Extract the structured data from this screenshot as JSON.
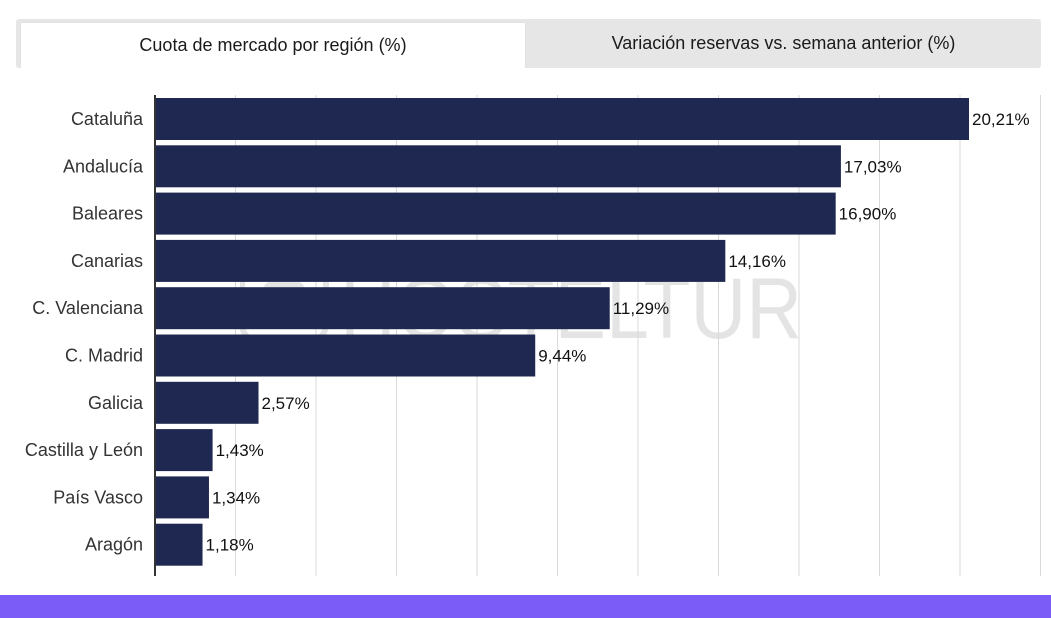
{
  "tabs": [
    {
      "label": "Cuota de mercado por región (%)",
      "active": true
    },
    {
      "label": "Variación reservas vs. semana anterior (%)",
      "active": false
    }
  ],
  "watermark": {
    "text": "HOSTELTUR"
  },
  "colors": {
    "bar": "#1f2850",
    "grid": "#d9d9d9",
    "axis": "#333333",
    "footer": "#7b5cf6"
  },
  "chart_data": {
    "type": "bar",
    "orientation": "horizontal",
    "categories": [
      "Cataluña",
      "Andalucía",
      "Baleares",
      "Canarias",
      "C. Valenciana",
      "C. Madrid",
      "Galicia",
      "Castilla y León",
      "País Vasco",
      "Aragón"
    ],
    "values": [
      20.21,
      17.03,
      16.9,
      14.16,
      11.29,
      9.44,
      2.57,
      1.43,
      1.34,
      1.18
    ],
    "value_labels": [
      "20,21%",
      "17,03%",
      "16,90%",
      "14,16%",
      "11,29%",
      "9,44%",
      "2,57%",
      "1,43%",
      "1,34%",
      "1,18%"
    ],
    "xlim": [
      0,
      22
    ],
    "grid": true,
    "x_tick_labels_shown": false,
    "legend": "none"
  }
}
